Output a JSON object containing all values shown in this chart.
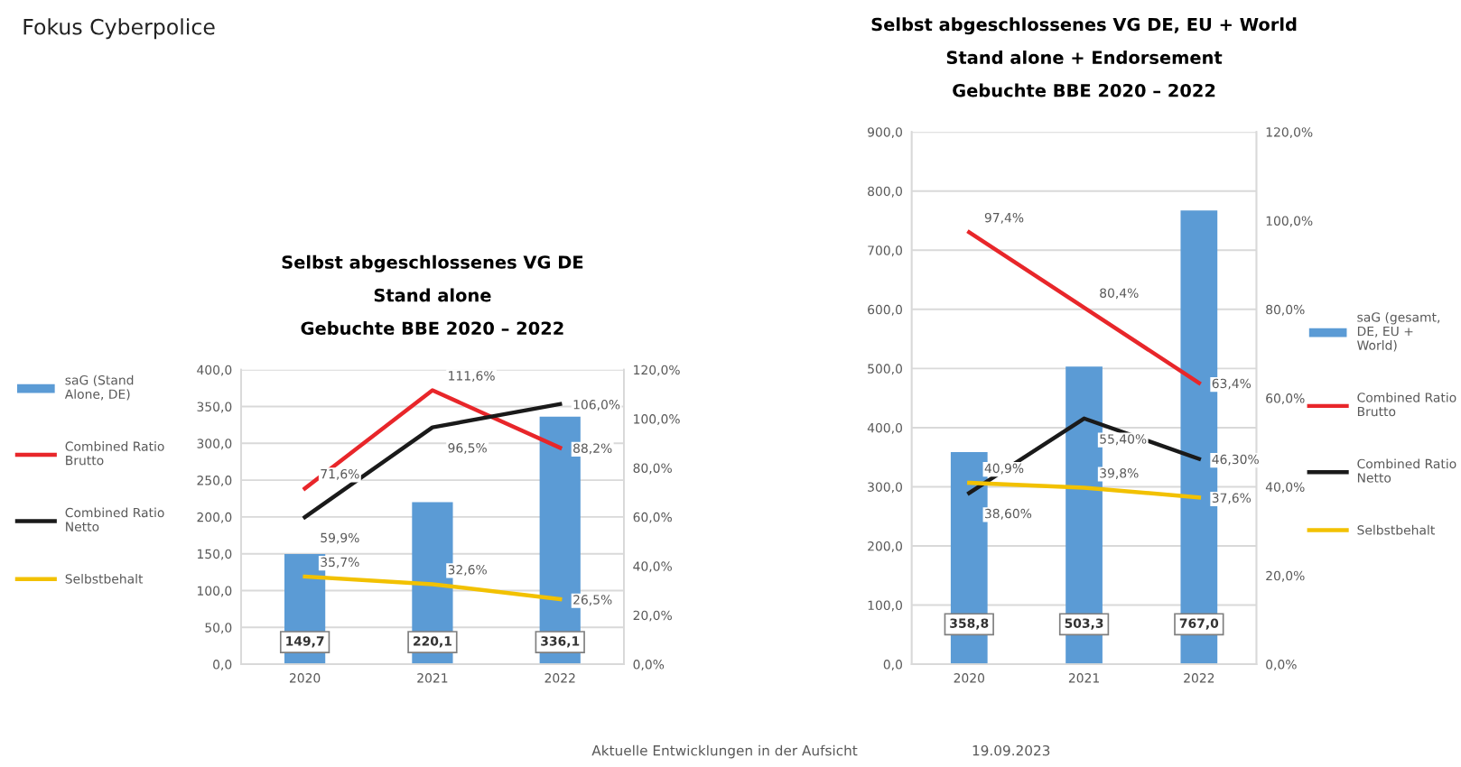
{
  "chart_data": [
    {
      "type": "bar",
      "title": "Selbst abgeschlossenes VG DE\nStand alone\nGebuchte BBE 2020 – 2022",
      "annotations": [
        "Fokus Cyberpolice",
        "Aktuelle Entwicklungen in der Aufsicht"
      ],
      "categories": [
        "2020",
        "2021",
        "2022"
      ],
      "series": [
        {
          "name": "saG (Stand Alone, DE)",
          "axis": "y",
          "color": "#5b9bd5",
          "values": [
            149.7,
            220.1,
            336.1
          ],
          "value_labels": [
            "149,7",
            "220,1",
            "336,1"
          ]
        },
        {
          "name": "Combined Ratio Brutto",
          "type": "line",
          "axis": "y2",
          "color": "#e8262a",
          "values": [
            71.6,
            111.6,
            88.2
          ],
          "value_labels": [
            "71,6%",
            "111,6%",
            "88,2%"
          ]
        },
        {
          "name": "Combined Ratio Netto",
          "type": "line",
          "axis": "y2",
          "color": "#1a1a1a",
          "values": [
            59.9,
            96.5,
            106.0
          ],
          "value_labels": [
            "59,9%",
            "96,5%",
            "106,0%"
          ]
        },
        {
          "name": "Selbstbehalt",
          "type": "line",
          "axis": "y2",
          "color": "#f2c100",
          "values": [
            35.7,
            32.6,
            26.5
          ],
          "value_labels": [
            "35,7%",
            "32,6%",
            "26,5%"
          ]
        }
      ],
      "ylim": [
        0,
        400
      ],
      "yticks": [
        {
          "value": 0,
          "label": "0,0"
        },
        {
          "value": 50,
          "label": "50,0"
        },
        {
          "value": 100,
          "label": "100,0"
        },
        {
          "value": 150,
          "label": "150,0"
        },
        {
          "value": 200,
          "label": "200,0"
        },
        {
          "value": 250,
          "label": "250,0"
        },
        {
          "value": 300,
          "label": "300,0"
        },
        {
          "value": 350,
          "label": "350,0"
        },
        {
          "value": 400,
          "label": "400,0"
        }
      ],
      "y2lim": [
        0,
        120
      ],
      "y2ticks": [
        {
          "value": 0,
          "label": "0,0%"
        },
        {
          "value": 20,
          "label": "20,0%"
        },
        {
          "value": 40,
          "label": "40,0%"
        },
        {
          "value": 60,
          "label": "60,0%"
        },
        {
          "value": 80,
          "label": "80,0%"
        },
        {
          "value": 100,
          "label": "100,0%"
        },
        {
          "value": 120,
          "label": "120,0%"
        }
      ],
      "grid": "y",
      "legend": "left",
      "marker": "none",
      "line_style": "solid"
    },
    {
      "type": "bar",
      "title": "Selbst abgeschlossenes VG DE, EU + World\nStand alone + Endorsement\nGebuchte BBE 2020 – 2022",
      "annotations": [
        "19.09.2023"
      ],
      "categories": [
        "2020",
        "2021",
        "2022"
      ],
      "series": [
        {
          "name": "saG (gesamt, DE, EU + World)",
          "axis": "y",
          "color": "#5b9bd5",
          "values": [
            358.8,
            503.3,
            767.0
          ],
          "value_labels": [
            "358,8",
            "503,3",
            "767,0"
          ]
        },
        {
          "name": "Combined Ratio Brutto",
          "type": "line",
          "axis": "y2",
          "color": "#e8262a",
          "values": [
            97.4,
            80.4,
            63.4
          ],
          "value_labels": [
            "97,4%",
            "80,4%",
            "63,4%"
          ]
        },
        {
          "name": "Combined Ratio Netto",
          "type": "line",
          "axis": "y2",
          "color": "#1a1a1a",
          "values": [
            38.6,
            55.4,
            46.3
          ],
          "value_labels": [
            "38,60%",
            "55,40%",
            "46,30%"
          ]
        },
        {
          "name": "Selbstbehalt",
          "type": "line",
          "axis": "y2",
          "color": "#f2c100",
          "values": [
            40.9,
            39.8,
            37.6
          ],
          "value_labels": [
            "40,9%",
            "39,8%",
            "37,6%"
          ]
        }
      ],
      "ylim": [
        0,
        900
      ],
      "yticks": [
        {
          "value": 0,
          "label": "0,0"
        },
        {
          "value": 100,
          "label": "100,0"
        },
        {
          "value": 200,
          "label": "200,0"
        },
        {
          "value": 300,
          "label": "300,0"
        },
        {
          "value": 400,
          "label": "400,0"
        },
        {
          "value": 500,
          "label": "500,0"
        },
        {
          "value": 600,
          "label": "600,0"
        },
        {
          "value": 700,
          "label": "700,0"
        },
        {
          "value": 800,
          "label": "800,0"
        },
        {
          "value": 900,
          "label": "900,0"
        }
      ],
      "y2lim": [
        0,
        120
      ],
      "y2ticks": [
        {
          "value": 0,
          "label": "0,0%"
        },
        {
          "value": 20,
          "label": "20,0%"
        },
        {
          "value": 40,
          "label": "40,0%"
        },
        {
          "value": 60,
          "label": "60,0%"
        },
        {
          "value": 80,
          "label": "80,0%"
        },
        {
          "value": 100,
          "label": "100,0%"
        },
        {
          "value": 120,
          "label": "120,0%"
        }
      ],
      "grid": "y",
      "legend": "right",
      "marker": "none",
      "line_style": "solid"
    }
  ]
}
